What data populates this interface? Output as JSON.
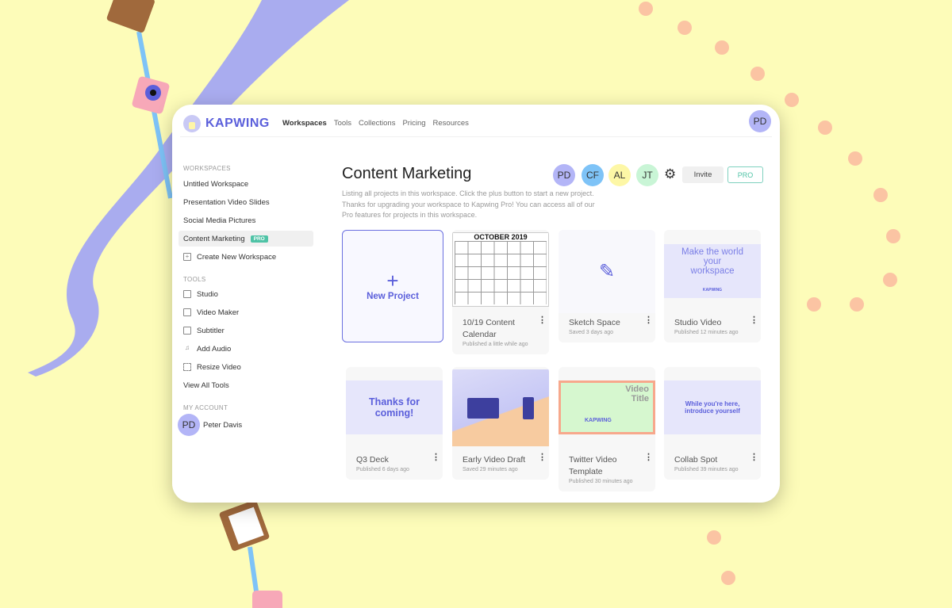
{
  "header": {
    "brand": "KAPWING",
    "nav": [
      "Workspaces",
      "Tools",
      "Collections",
      "Pricing",
      "Resources"
    ],
    "user_initials": "PD"
  },
  "sidebar": {
    "workspaces_label": "WORKSPACES",
    "workspaces": [
      "Untitled Workspace",
      "Presentation Video Slides",
      "Social Media Pictures",
      "Content Marketing"
    ],
    "active_badge": "PRO",
    "create_label": "Create New Workspace",
    "tools_label": "TOOLS",
    "tools": [
      {
        "label": "Studio",
        "icon": "layout-icon"
      },
      {
        "label": "Video Maker",
        "icon": "video-camera-icon"
      },
      {
        "label": "Subtitler",
        "icon": "subtitles-icon"
      },
      {
        "label": "Add Audio",
        "icon": "music-note-icon"
      },
      {
        "label": "Resize Video",
        "icon": "resize-icon"
      }
    ],
    "view_all": "View All Tools",
    "account_label": "MY ACCOUNT",
    "account": {
      "initials": "PD",
      "name": "Peter Davis"
    }
  },
  "main": {
    "title": "Content Marketing",
    "description": "Listing all projects in this workspace. Click the plus button to start a new project. Thanks for upgrading your workspace to Kapwing Pro! You can access all of our Pro features for projects in this workspace.",
    "members": [
      {
        "initials": "PD",
        "color": "#b3b5f7"
      },
      {
        "initials": "CF",
        "color": "#7ec3f7"
      },
      {
        "initials": "AL",
        "color": "#fdf7a6"
      },
      {
        "initials": "JT",
        "color": "#c9f5d6"
      }
    ],
    "invite_label": "Invite",
    "pro_label": "PRO",
    "new_project": {
      "plus": "+",
      "label": "New Project"
    },
    "projects": [
      {
        "title": "10/19 Content Calendar",
        "subtitle": "Published a little while ago",
        "thumb_text": "OCTOBER 2019"
      },
      {
        "title": "Sketch Space",
        "subtitle": "Saved 3 days ago",
        "thumb_text": ""
      },
      {
        "title": "Studio Video",
        "subtitle": "Published 12 minutes ago",
        "thumb_text": "Make the world your workspace",
        "thumb_logo": "KAPWING"
      },
      {
        "title": "Q3 Deck",
        "subtitle": "Published 6 days ago",
        "thumb_text": "Thanks for coming!"
      },
      {
        "title": "Early Video Draft",
        "subtitle": "Saved 29 minutes ago",
        "thumb_text": ""
      },
      {
        "title": "Twitter Video Template",
        "subtitle": "Published 30 minutes ago",
        "thumb_text": "Video Title",
        "thumb_logo": "KAPWING"
      },
      {
        "title": "Collab Spot",
        "subtitle": "Published 39 minutes ago",
        "thumb_text": "While you're here, introduce yourself"
      }
    ]
  },
  "colors": {
    "background": "#fdfcb9",
    "accent": "#5b5fdb",
    "pro": "#4fc3a6",
    "wave": "#a9acef",
    "dots": "#fbc4a3"
  }
}
